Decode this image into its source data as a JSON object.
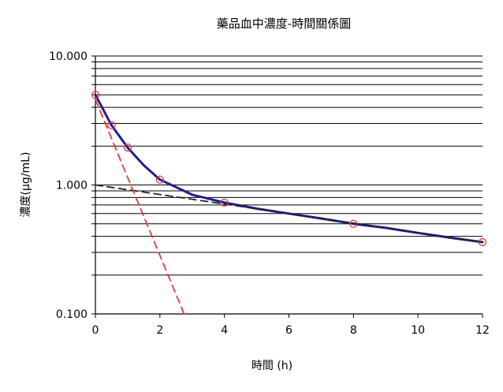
{
  "chart_data": {
    "type": "line",
    "title": "藥品血中濃度-時間關係圖",
    "xlabel": "時間 (h)",
    "ylabel": "濃度(μg/mL)",
    "xlim": [
      0,
      12
    ],
    "ylim": [
      0.1,
      10
    ],
    "y_scale": "log",
    "x_ticks": [
      0,
      2,
      4,
      6,
      8,
      10,
      12
    ],
    "x_tick_labels": [
      "0",
      "2",
      "4",
      "6",
      "8",
      "10",
      "12"
    ],
    "y_ticks": [
      0.1,
      1,
      10
    ],
    "y_tick_labels": [
      "0.100",
      "1.000",
      "10.000"
    ],
    "grid": true,
    "legend": "none",
    "observed_points": {
      "x": [
        0,
        0.5,
        1,
        2,
        4,
        8,
        12
      ],
      "y": [
        5.0,
        2.9,
        1.95,
        1.1,
        0.73,
        0.5,
        0.36
      ],
      "marker": "open-circle",
      "color": "#e03c3c"
    },
    "series": [
      {
        "style": "solid",
        "color": "#1f1f8f",
        "x": [
          0,
          0.5,
          1,
          1.5,
          2,
          3,
          4,
          5,
          6,
          7,
          8,
          9,
          10,
          11,
          12
        ],
        "y": [
          5.0,
          2.9,
          1.95,
          1.42,
          1.1,
          0.84,
          0.73,
          0.655,
          0.6,
          0.55,
          0.5,
          0.465,
          0.425,
          0.39,
          0.36
        ]
      },
      {
        "style": "dashed",
        "color": "#222222",
        "x": [
          0,
          12
        ],
        "y": [
          1.0,
          0.36
        ]
      },
      {
        "style": "dashed",
        "color": "#e03c3c",
        "x": [
          0,
          2.75
        ],
        "y": [
          4.6,
          0.1
        ]
      }
    ]
  }
}
